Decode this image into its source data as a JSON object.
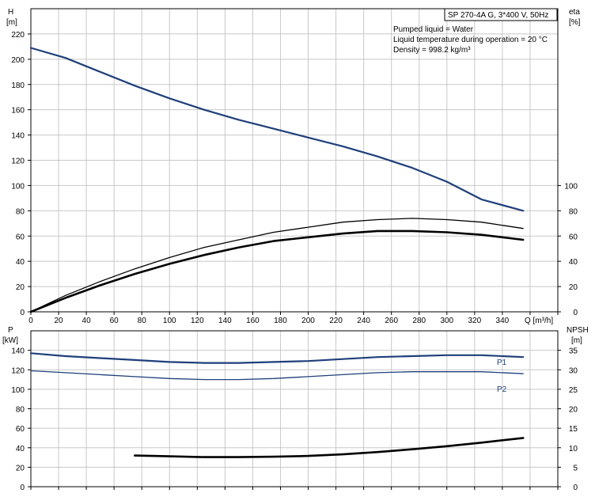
{
  "chart_data": [
    {
      "type": "line",
      "title": "SP 270-4A G, 3*400 V, 50Hz",
      "info_lines": [
        "Pumped liquid = Water",
        "Liquid temperature during operation = 20 °C",
        "Density = 998.2 kg/m³"
      ],
      "xlabel": "Q [m³/h]",
      "xlim": [
        0,
        380
      ],
      "x_ticks": [
        0,
        20,
        40,
        60,
        80,
        100,
        120,
        140,
        160,
        180,
        200,
        220,
        240,
        260,
        280,
        300,
        320,
        340
      ],
      "y_left": {
        "label_top": "H",
        "label_unit": "[m]",
        "lim": [
          0,
          240
        ],
        "ticks": [
          0,
          20,
          40,
          60,
          80,
          100,
          120,
          140,
          160,
          180,
          200,
          220
        ]
      },
      "y_right": {
        "label_top": "eta",
        "label_unit": "[%]",
        "lim": [
          0,
          240
        ],
        "ticks": [
          0,
          20,
          40,
          60,
          80,
          100
        ]
      },
      "grid": true,
      "series": [
        {
          "axis": "left",
          "color": "#1f3f7a",
          "x": [
            0,
            25,
            50,
            75,
            100,
            125,
            150,
            175,
            200,
            225,
            250,
            275,
            300,
            325,
            355
          ],
          "y": [
            209,
            201,
            190,
            179,
            169,
            160,
            152,
            145,
            138,
            131,
            123,
            114,
            103,
            89,
            80
          ]
        },
        {
          "axis": "right",
          "color": "#000000",
          "x": [
            0,
            25,
            50,
            75,
            100,
            125,
            150,
            175,
            200,
            225,
            250,
            275,
            300,
            325,
            355
          ],
          "y": [
            0,
            13,
            24,
            34,
            43,
            51,
            57,
            63,
            67,
            71,
            73,
            74,
            73,
            71,
            66
          ]
        },
        {
          "axis": "right",
          "color": "#000000",
          "x": [
            0,
            25,
            50,
            75,
            100,
            125,
            150,
            175,
            200,
            225,
            250,
            275,
            300,
            325,
            355
          ],
          "y": [
            0,
            11,
            21,
            30,
            38,
            45,
            51,
            56,
            59,
            62,
            64,
            64,
            63,
            61,
            57
          ]
        }
      ]
    },
    {
      "type": "line",
      "xlim": [
        0,
        380
      ],
      "y_left": {
        "label_top": "P",
        "label_unit": "[kW]",
        "lim": [
          0,
          160
        ],
        "ticks": [
          0,
          20,
          40,
          60,
          80,
          100,
          120,
          140
        ]
      },
      "y_right": {
        "label_top": "NPSH",
        "label_unit": "[m]",
        "lim": [
          0,
          40
        ],
        "ticks": [
          0,
          5,
          10,
          15,
          20,
          25,
          30,
          35
        ]
      },
      "grid": true,
      "series": [
        {
          "name": "P1",
          "axis": "left",
          "color": "#1f3f7a",
          "x": [
            0,
            25,
            50,
            75,
            100,
            125,
            150,
            175,
            200,
            225,
            250,
            275,
            300,
            325,
            355
          ],
          "y": [
            137,
            134,
            132,
            130,
            128,
            127,
            127,
            128,
            129,
            131,
            133,
            134,
            135,
            135,
            133
          ]
        },
        {
          "name": "P2",
          "axis": "left",
          "color": "#1f3f7a",
          "x": [
            0,
            25,
            50,
            75,
            100,
            125,
            150,
            175,
            200,
            225,
            250,
            275,
            300,
            325,
            355
          ],
          "y": [
            119,
            117,
            115,
            113,
            111,
            110,
            110,
            111,
            113,
            115,
            117,
            118,
            118,
            118,
            116
          ]
        },
        {
          "axis": "right",
          "color": "#000000",
          "x": [
            75,
            100,
            125,
            150,
            175,
            200,
            225,
            250,
            275,
            300,
            325,
            355
          ],
          "y": [
            8.0,
            7.8,
            7.6,
            7.6,
            7.7,
            7.9,
            8.3,
            8.9,
            9.6,
            10.4,
            11.3,
            12.5
          ]
        }
      ]
    }
  ]
}
